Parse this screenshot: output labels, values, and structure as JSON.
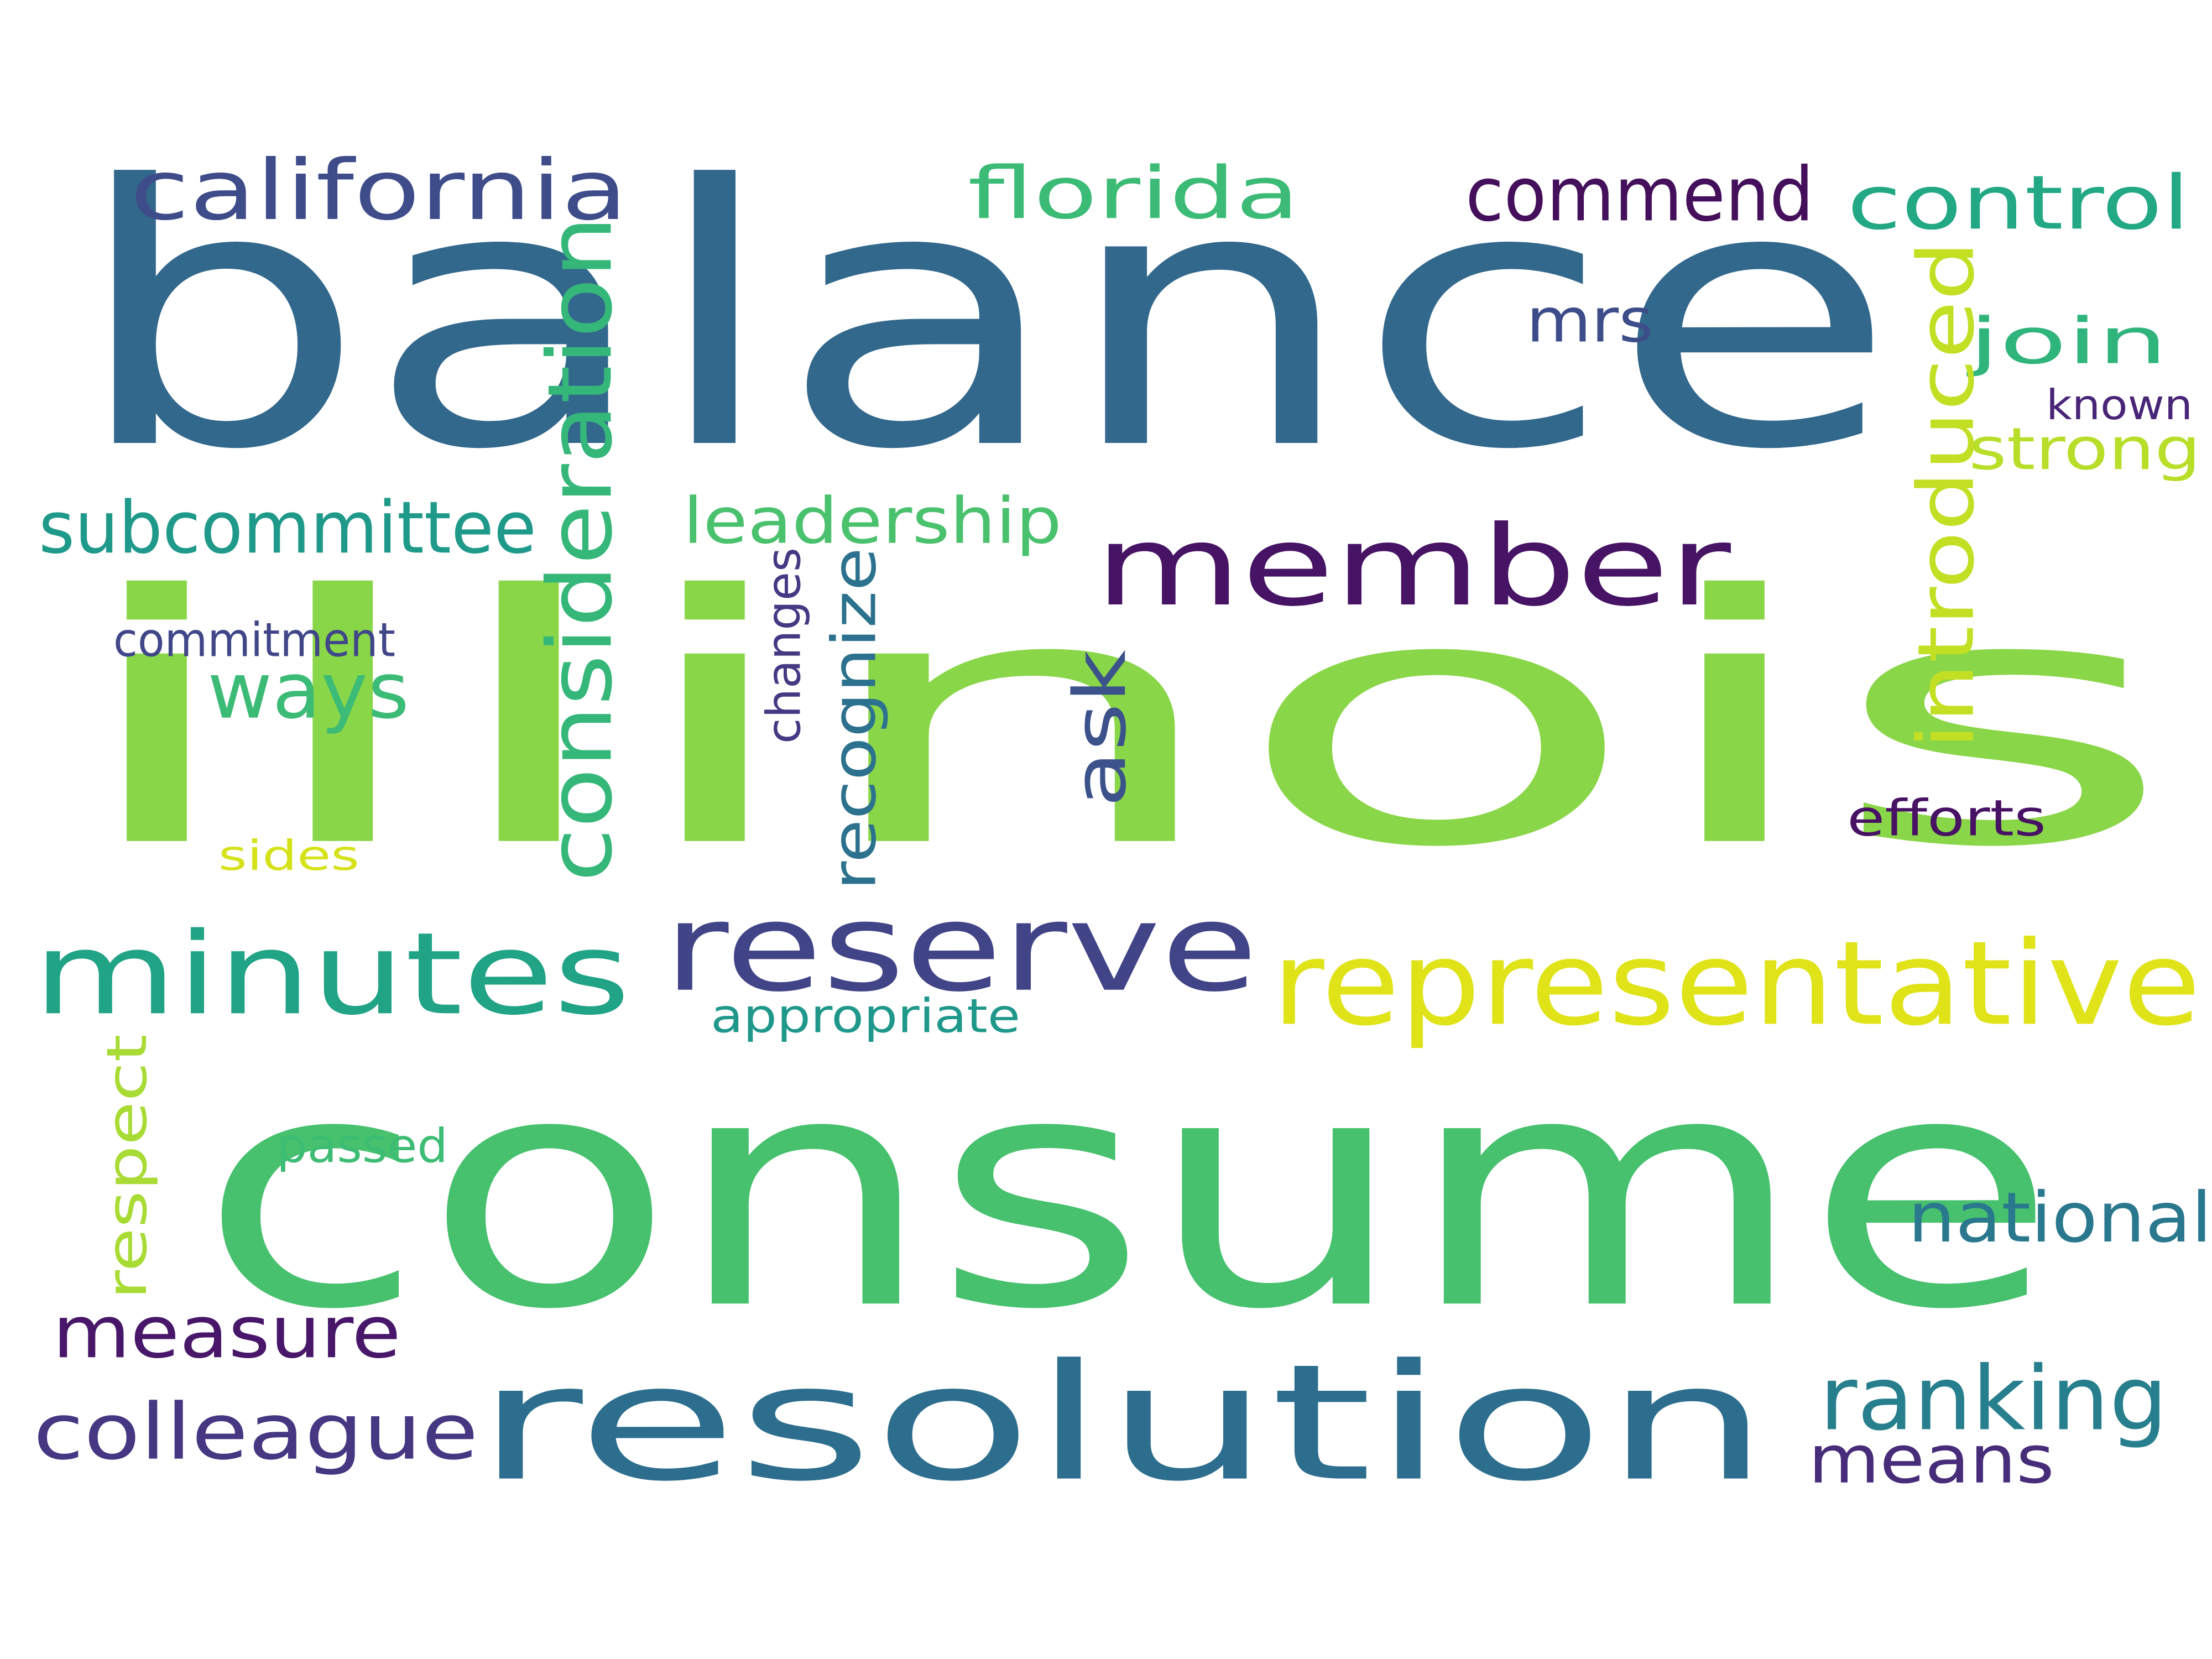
{
  "words": [
    {
      "key": "balance",
      "text": "balance",
      "color": "#33688d",
      "orientation": "horizontal"
    },
    {
      "key": "illinois",
      "text": "illinois",
      "color": "#8ad649",
      "orientation": "horizontal"
    },
    {
      "key": "consume",
      "text": "consume",
      "color": "#47c16e",
      "orientation": "horizontal"
    },
    {
      "key": "resolution",
      "text": "resolution",
      "color": "#2d6e8e",
      "orientation": "horizontal"
    },
    {
      "key": "member",
      "text": "member",
      "color": "#471365",
      "orientation": "horizontal"
    },
    {
      "key": "reserve",
      "text": "reserve",
      "color": "#414487",
      "orientation": "horizontal"
    },
    {
      "key": "representative",
      "text": "representative",
      "color": "#dfe318",
      "orientation": "horizontal"
    },
    {
      "key": "minutes",
      "text": "minutes",
      "color": "#21a385",
      "orientation": "horizontal"
    },
    {
      "key": "california",
      "text": "california",
      "color": "#3e4c8a",
      "orientation": "horizontal"
    },
    {
      "key": "florida",
      "text": "florida",
      "color": "#3bbb75",
      "orientation": "horizontal"
    },
    {
      "key": "commend",
      "text": "commend",
      "color": "#440f5b",
      "orientation": "horizontal"
    },
    {
      "key": "control",
      "text": "control",
      "color": "#22a884",
      "orientation": "horizontal"
    },
    {
      "key": "join",
      "text": "join",
      "color": "#2fb47c",
      "orientation": "horizontal"
    },
    {
      "key": "known",
      "text": "known",
      "color": "#482576",
      "orientation": "horizontal"
    },
    {
      "key": "strong",
      "text": "strong",
      "color": "#b8de29",
      "orientation": "horizontal"
    },
    {
      "key": "mrs",
      "text": "mrs",
      "color": "#3d4d8a",
      "orientation": "horizontal"
    },
    {
      "key": "introduced",
      "text": "introduced",
      "color": "#c2df23",
      "orientation": "vertical"
    },
    {
      "key": "consideration",
      "text": "consideration",
      "color": "#35b779",
      "orientation": "vertical"
    },
    {
      "key": "subcommittee",
      "text": "subcommittee",
      "color": "#1f9a8a",
      "orientation": "horizontal"
    },
    {
      "key": "leadership",
      "text": "leadership",
      "color": "#4ac16d",
      "orientation": "horizontal"
    },
    {
      "key": "commitment",
      "text": "commitment",
      "color": "#404688",
      "orientation": "horizontal"
    },
    {
      "key": "ways",
      "text": "ways",
      "color": "#3bbb75",
      "orientation": "horizontal"
    },
    {
      "key": "changes",
      "text": "changes",
      "color": "#443983",
      "orientation": "vertical"
    },
    {
      "key": "recognize",
      "text": "recognize",
      "color": "#2c728e",
      "orientation": "vertical"
    },
    {
      "key": "ask",
      "text": "ask",
      "color": "#3b528b",
      "orientation": "vertical"
    },
    {
      "key": "efforts",
      "text": "efforts",
      "color": "#471164",
      "orientation": "horizontal"
    },
    {
      "key": "sides",
      "text": "sides",
      "color": "#d5e21a",
      "orientation": "horizontal"
    },
    {
      "key": "appropriate",
      "text": "appropriate",
      "color": "#1f988b",
      "orientation": "horizontal"
    },
    {
      "key": "respect",
      "text": "respect",
      "color": "#a8db34",
      "orientation": "vertical"
    },
    {
      "key": "passed",
      "text": "passed",
      "color": "#3dbc74",
      "orientation": "horizontal"
    },
    {
      "key": "national",
      "text": "national",
      "color": "#2a788e",
      "orientation": "horizontal"
    },
    {
      "key": "measure",
      "text": "measure",
      "color": "#481769",
      "orientation": "horizontal"
    },
    {
      "key": "colleague",
      "text": "colleague",
      "color": "#453781",
      "orientation": "horizontal"
    },
    {
      "key": "ranking",
      "text": "ranking",
      "color": "#277f8e",
      "orientation": "horizontal"
    },
    {
      "key": "means",
      "text": "means",
      "color": "#472c7a",
      "orientation": "horizontal"
    }
  ]
}
